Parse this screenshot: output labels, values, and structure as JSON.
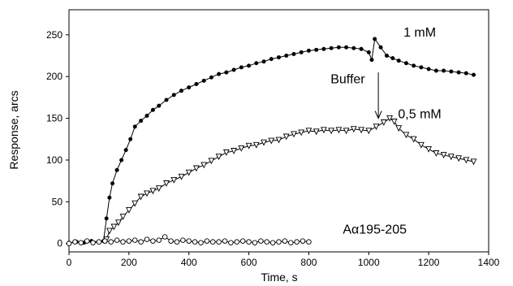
{
  "chart_data": {
    "type": "scatter",
    "title": "",
    "xlabel": "Time, s",
    "ylabel": "Response, arcs",
    "xlim": [
      0,
      1400
    ],
    "ylim": [
      -10,
      280
    ],
    "xticks": [
      "0",
      "200",
      "400",
      "600",
      "800",
      "1000",
      "1200",
      "1400"
    ],
    "yticks": [
      "0",
      "50",
      "100",
      "150",
      "200",
      "250"
    ],
    "grid": false,
    "annotations": [
      {
        "text": "1 mM",
        "x": 1170,
        "y": 248
      },
      {
        "text": "Buffer",
        "x": 930,
        "y": 192
      },
      {
        "text": "0,5 mM",
        "x": 1170,
        "y": 150
      },
      {
        "text": "Aα195-205",
        "x": 1020,
        "y": 12
      }
    ],
    "arrow": {
      "x": 1032,
      "from_y": 205,
      "to_y": 150
    },
    "series": [
      {
        "marker": "filled-circle",
        "x": [
          0,
          25,
          50,
          75,
          100,
          115,
          125,
          135,
          145,
          160,
          175,
          190,
          205,
          220,
          240,
          260,
          280,
          300,
          325,
          350,
          375,
          400,
          425,
          450,
          475,
          500,
          525,
          550,
          575,
          600,
          625,
          650,
          675,
          700,
          725,
          750,
          775,
          800,
          825,
          850,
          875,
          900,
          925,
          950,
          975,
          1000,
          1010,
          1020,
          1040,
          1060,
          1080,
          1100,
          1125,
          1150,
          1175,
          1200,
          1225,
          1250,
          1275,
          1300,
          1325,
          1350
        ],
        "values": [
          1,
          2,
          1,
          3,
          2,
          3,
          30,
          55,
          72,
          88,
          100,
          112,
          125,
          140,
          147,
          153,
          160,
          165,
          172,
          178,
          183,
          187,
          191,
          195,
          199,
          203,
          205,
          208,
          211,
          213,
          216,
          218,
          221,
          223,
          225,
          227,
          229,
          231,
          232,
          233,
          234,
          235,
          235,
          234,
          233,
          229,
          220,
          245,
          235,
          225,
          222,
          219,
          216,
          213,
          211,
          209,
          207,
          207,
          206,
          205,
          204,
          202
        ]
      },
      {
        "marker": "open-triangle-down",
        "x": [
          125,
          135,
          150,
          165,
          180,
          200,
          220,
          240,
          260,
          280,
          300,
          325,
          350,
          375,
          400,
          425,
          450,
          475,
          500,
          525,
          550,
          575,
          600,
          625,
          650,
          675,
          700,
          725,
          750,
          775,
          800,
          825,
          850,
          875,
          900,
          925,
          950,
          975,
          1000,
          1025,
          1050,
          1070,
          1085,
          1100,
          1125,
          1150,
          1175,
          1200,
          1225,
          1250,
          1275,
          1300,
          1325,
          1350
        ],
        "values": [
          5,
          15,
          20,
          25,
          32,
          40,
          48,
          56,
          60,
          63,
          66,
          72,
          76,
          80,
          85,
          90,
          94,
          99,
          104,
          109,
          111,
          114,
          117,
          118,
          121,
          123,
          124,
          128,
          131,
          133,
          135,
          134,
          136,
          135,
          136,
          135,
          137,
          136,
          135,
          140,
          145,
          150,
          146,
          138,
          130,
          125,
          118,
          113,
          108,
          106,
          104,
          102,
          100,
          98
        ]
      },
      {
        "marker": "open-circle",
        "x": [
          0,
          20,
          40,
          60,
          80,
          100,
          120,
          140,
          160,
          180,
          200,
          220,
          240,
          260,
          280,
          300,
          320,
          340,
          360,
          380,
          400,
          420,
          440,
          460,
          480,
          500,
          520,
          540,
          560,
          580,
          600,
          620,
          640,
          660,
          680,
          700,
          720,
          740,
          760,
          780,
          800
        ],
        "values": [
          0,
          2,
          1,
          3,
          1,
          2,
          3,
          2,
          4,
          2,
          3,
          4,
          2,
          5,
          3,
          4,
          8,
          3,
          2,
          4,
          3,
          2,
          1,
          3,
          2,
          2,
          3,
          1,
          2,
          3,
          2,
          1,
          3,
          2,
          1,
          2,
          3,
          1,
          2,
          3,
          2
        ]
      }
    ]
  }
}
